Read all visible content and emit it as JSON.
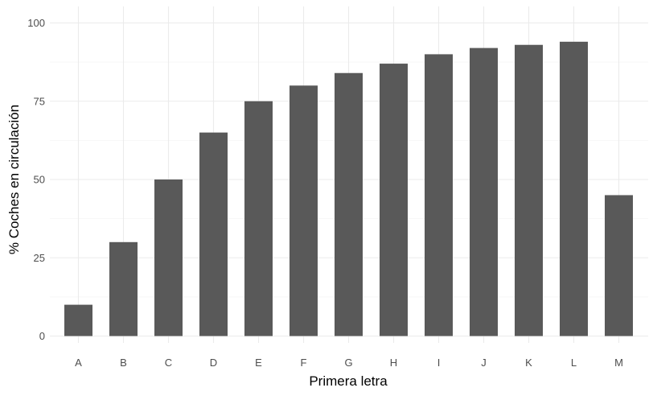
{
  "chart_data": {
    "type": "bar",
    "xlabel": "Primera letra",
    "ylabel": "% Coches en circulación",
    "categories": [
      "A",
      "B",
      "C",
      "D",
      "E",
      "F",
      "G",
      "H",
      "I",
      "J",
      "K",
      "L",
      "M"
    ],
    "values": [
      10,
      30,
      50,
      65,
      75,
      80,
      84,
      87,
      90,
      92,
      93,
      94,
      45
    ],
    "ylim": [
      0,
      100
    ],
    "yticks": [
      0,
      25,
      50,
      75,
      100
    ],
    "grid": true,
    "bar_color": "#595959",
    "grid_major_color": "#ebebeb",
    "grid_minor_color": "#f5f5f5",
    "tick_label_color": "#4d4d4d"
  }
}
